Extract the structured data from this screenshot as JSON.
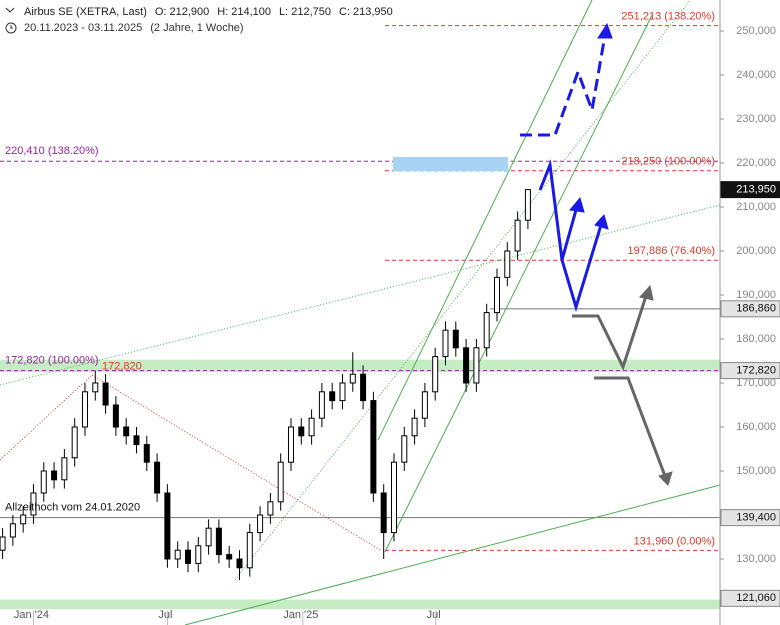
{
  "chart_data": {
    "type": "candlestick",
    "title": "Airbus SE (XETRA, Last)",
    "quote": [
      {
        "label": "O:",
        "value": "212,900"
      },
      {
        "label": "H:",
        "value": "214,100"
      },
      {
        "label": "L:",
        "value": "212,750"
      },
      {
        "label": "C:",
        "value": "213,950"
      }
    ],
    "period": "20.11.2023 - 03.11.2025",
    "period_note": "(2 Jahre, 1 Woche)",
    "x": [
      0,
      2,
      4,
      6,
      8,
      10,
      12,
      14,
      16,
      18,
      20,
      22,
      24,
      26,
      28,
      30,
      32,
      34,
      36,
      38,
      40,
      42,
      44,
      46,
      48,
      50,
      52,
      54,
      56,
      58,
      60,
      62,
      64,
      66,
      68,
      70,
      72,
      74,
      76,
      78,
      80,
      82,
      84,
      86,
      88,
      90,
      92,
      94,
      96,
      98,
      100,
      102
    ],
    "open": [
      132000,
      135000,
      138000,
      140000,
      145000,
      150000,
      148000,
      153000,
      160000,
      168000,
      170000,
      165000,
      160000,
      158000,
      156000,
      152000,
      145000,
      130000,
      132000,
      129000,
      133000,
      137000,
      131000,
      130000,
      128000,
      136000,
      140000,
      143000,
      152000,
      160000,
      158000,
      162000,
      168000,
      166000,
      170000,
      172000,
      166000,
      145000,
      136000,
      152000,
      158000,
      162000,
      168000,
      176000,
      182000,
      178000,
      170000,
      178000,
      186000,
      194000,
      200000,
      207000
    ],
    "high": [
      137000,
      140000,
      142000,
      147000,
      152000,
      152000,
      155000,
      162000,
      170000,
      172820,
      172000,
      167000,
      162000,
      160000,
      158000,
      154000,
      147000,
      134000,
      134000,
      135000,
      139000,
      139000,
      133000,
      132000,
      138000,
      142000,
      145000,
      154000,
      162000,
      162000,
      164000,
      170000,
      170000,
      172000,
      177000,
      174000,
      168000,
      147000,
      154000,
      160000,
      164000,
      170000,
      178000,
      184000,
      184000,
      180000,
      180000,
      188000,
      196000,
      202000,
      209000,
      214100
    ],
    "low": [
      130000,
      133000,
      136000,
      138000,
      143000,
      146000,
      146000,
      151000,
      158000,
      166000,
      163000,
      158000,
      156000,
      154000,
      150000,
      143000,
      128000,
      128000,
      127000,
      127000,
      131000,
      129000,
      128000,
      125200,
      126000,
      134000,
      138000,
      141000,
      150000,
      156000,
      156000,
      160000,
      164000,
      164000,
      168000,
      164000,
      143000,
      130000,
      134000,
      150000,
      156000,
      160000,
      166000,
      174000,
      176000,
      168000,
      168000,
      176000,
      184000,
      192000,
      198000,
      205000
    ],
    "close": [
      135000,
      138000,
      140000,
      145000,
      150000,
      148000,
      153000,
      160000,
      168000,
      170000,
      165000,
      160000,
      158000,
      156000,
      152000,
      145000,
      130000,
      132000,
      129000,
      133000,
      137000,
      131000,
      130000,
      128000,
      136000,
      140000,
      143000,
      152000,
      160000,
      158000,
      162000,
      168000,
      166000,
      170000,
      172000,
      166000,
      145000,
      136000,
      152000,
      158000,
      162000,
      168000,
      176000,
      182000,
      178000,
      170000,
      178000,
      186000,
      194000,
      200000,
      207000,
      213950
    ],
    "up_color": "#ffffff",
    "down_color": "#000000",
    "xlim": [
      -0.5,
      139.3
    ],
    "xticks": [
      {
        "value": 6,
        "label": "Jan '24"
      },
      {
        "value": 32,
        "label": "Jul"
      },
      {
        "value": 58.3,
        "label": "Jan '25"
      },
      {
        "value": 84.1,
        "label": "Jul"
      }
    ],
    "ylim": [
      115000,
      257045
    ],
    "yticks": [
      {
        "value": 130000,
        "label": "130,000"
      },
      {
        "value": 140000,
        "label": "140,000"
      },
      {
        "value": 150000,
        "label": "150,000"
      },
      {
        "value": 160000,
        "label": "160,000"
      },
      {
        "value": 170000,
        "label": "170,000"
      },
      {
        "value": 180000,
        "label": "180,000"
      },
      {
        "value": 190000,
        "label": "190,000"
      },
      {
        "value": 200000,
        "label": "200,000"
      },
      {
        "value": 210000,
        "label": "210,000"
      },
      {
        "value": 220000,
        "label": "220,000"
      },
      {
        "value": 230000,
        "label": "230,000"
      },
      {
        "value": 240000,
        "label": "240,000"
      },
      {
        "value": 250000,
        "label": "250,000"
      }
    ],
    "fib_levels": [
      {
        "value": 251213,
        "label": "251,213 (138.20%)",
        "color": "#e0392b"
      },
      {
        "value": 218250,
        "label": "218,250 (100.00%)",
        "color": "#e0392b"
      },
      {
        "value": 197886,
        "label": "197,886 (76.40%)",
        "color": "#e0392b"
      },
      {
        "value": 131960,
        "label": "131,960 (0.00%)",
        "color": "#e0392b"
      }
    ],
    "purple_levels": [
      {
        "value": 220410,
        "label": "220,410 (138.20%)",
        "color": "#9c1fa8"
      },
      {
        "value": 172820,
        "label": "172,820 (100.00%)",
        "color": "#9c1fa8"
      }
    ],
    "peak_label": {
      "value": 172820,
      "label": "172,820",
      "color": "#e0392b"
    },
    "ath_label": "Allzeithoch vom 24.01.2020",
    "zones": [
      {
        "from": 172500,
        "to": 175300,
        "color": "#c6ecc4"
      },
      {
        "from": 118600,
        "to": 120800,
        "color": "#c6ecc4"
      }
    ],
    "price_tags": [
      {
        "value": 213950,
        "label": "213,950",
        "color": "#111111"
      },
      {
        "value": 186860,
        "label": "186,860",
        "color": "#e4e4e4"
      },
      {
        "value": 172820,
        "label": "172,820",
        "color": "#e4e4e4"
      },
      {
        "value": 139400,
        "label": "139,400",
        "color": "#e4e4e4"
      },
      {
        "value": 121060,
        "label": "121,060",
        "color": "#e4e4e4"
      }
    ]
  }
}
